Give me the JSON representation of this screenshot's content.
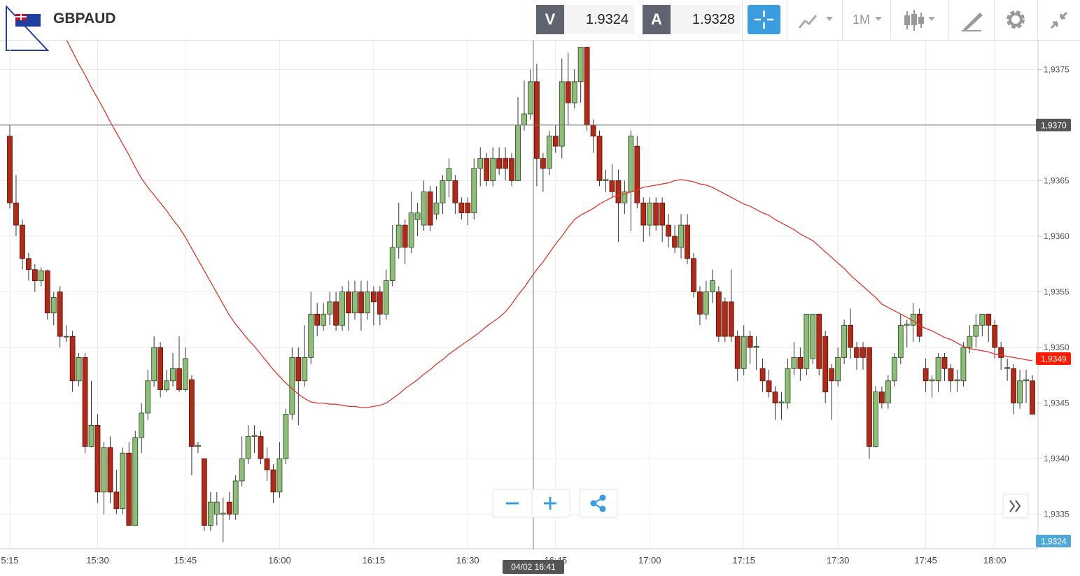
{
  "header": {
    "symbol": "GBPAUD",
    "bid_label": "V",
    "bid": 1.9324,
    "ask_label": "A",
    "ask": 1.9328,
    "timeframe": "1M"
  },
  "chart_data": {
    "type": "candlestick",
    "categories": [
      "5:15",
      null,
      null,
      null,
      null,
      null,
      null,
      null,
      null,
      null,
      null,
      null,
      null,
      null,
      "15:30",
      null,
      null,
      null,
      null,
      null,
      null,
      null,
      null,
      null,
      null,
      null,
      null,
      null,
      "15:45",
      null,
      null,
      null,
      null,
      null,
      null,
      null,
      null,
      null,
      null,
      null,
      null,
      null,
      null,
      "16:00",
      null,
      null,
      null,
      null,
      null,
      null,
      null,
      null,
      null,
      null,
      null,
      null,
      null,
      null,
      "16:15",
      null,
      null,
      null,
      null,
      null,
      null,
      null,
      null,
      null,
      null,
      null,
      null,
      null,
      null,
      "16:30",
      null,
      null,
      null,
      null,
      null,
      null,
      null,
      null,
      null,
      null,
      null,
      null,
      null,
      "16:45",
      null,
      null,
      null,
      null,
      null,
      null,
      null,
      null,
      null,
      null,
      null,
      null,
      null,
      null,
      "17:00",
      null,
      null,
      null,
      null,
      null,
      null,
      null,
      null,
      null,
      null,
      null,
      null,
      null,
      null,
      "17:15",
      null,
      null,
      null,
      null,
      null,
      null,
      null,
      null,
      null,
      null,
      null,
      null,
      null,
      null,
      "17:30",
      null,
      null,
      null,
      null,
      null,
      null,
      null,
      null,
      null,
      null,
      null,
      null,
      null,
      "17:45",
      null,
      null,
      null,
      null,
      null,
      null,
      null,
      null,
      null,
      null,
      "18:00",
      null,
      null,
      null,
      null,
      null,
      null
    ],
    "ohlc": [
      [
        1.9369,
        1.937,
        1.93625,
        1.9363
      ],
      [
        1.9363,
        1.93655,
        1.936,
        1.9361
      ],
      [
        1.9361,
        1.93615,
        1.9357,
        1.9358
      ],
      [
        1.9358,
        1.93585,
        1.9356,
        1.9357
      ],
      [
        1.9357,
        1.93575,
        1.9355,
        1.9356
      ],
      [
        1.9356,
        1.93572,
        1.93555,
        1.93569
      ],
      [
        1.93569,
        1.9357,
        1.93525,
        1.93531
      ],
      [
        1.93531,
        1.9355,
        1.9352,
        1.93545
      ],
      [
        1.9355,
        1.93555,
        1.935,
        1.9351
      ],
      [
        1.9351,
        1.9352,
        1.93505,
        1.9351
      ],
      [
        1.9351,
        1.93515,
        1.9346,
        1.9347
      ],
      [
        1.9347,
        1.93495,
        1.93465,
        1.93491
      ],
      [
        1.93491,
        1.93495,
        1.93405,
        1.93411
      ],
      [
        1.93411,
        1.9347,
        1.9341,
        1.9343
      ],
      [
        1.9343,
        1.9344,
        1.9336,
        1.9337
      ],
      [
        1.9337,
        1.93415,
        1.9335,
        1.9341
      ],
      [
        1.9341,
        1.9342,
        1.9336,
        1.9337
      ],
      [
        1.9337,
        1.9339,
        1.9335,
        1.93355
      ],
      [
        1.93355,
        1.9341,
        1.9335,
        1.93405
      ],
      [
        1.93405,
        1.93415,
        1.9334,
        1.9334
      ],
      [
        1.9334,
        1.93425,
        1.9334,
        1.93419
      ],
      [
        1.93419,
        1.9345,
        1.93405,
        1.93441
      ],
      [
        1.93441,
        1.9348,
        1.93435,
        1.9347
      ],
      [
        1.9347,
        1.9351,
        1.93465,
        1.935
      ],
      [
        1.935,
        1.93505,
        1.93455,
        1.93462
      ],
      [
        1.93462,
        1.9348,
        1.9346,
        1.9347
      ],
      [
        1.9347,
        1.93495,
        1.93465,
        1.93481
      ],
      [
        1.93481,
        1.9351,
        1.9346,
        1.93462
      ],
      [
        1.93462,
        1.935,
        1.9346,
        1.9349
      ],
      [
        1.93471,
        1.93475,
        1.93385,
        1.93411
      ],
      [
        1.93411,
        1.93415,
        1.93405,
        1.93412
      ],
      [
        1.934,
        1.934,
        1.93335,
        1.9334
      ],
      [
        1.9334,
        1.9337,
        1.93335,
        1.93361
      ],
      [
        1.9335,
        1.9337,
        1.9334,
        1.93361
      ],
      [
        1.9335,
        1.93365,
        1.93325,
        1.93351
      ],
      [
        1.93361,
        1.9337,
        1.93345,
        1.9335
      ],
      [
        1.9335,
        1.93385,
        1.93345,
        1.9338
      ],
      [
        1.9338,
        1.9342,
        1.93375,
        1.934
      ],
      [
        1.934,
        1.9343,
        1.93395,
        1.9342
      ],
      [
        1.9342,
        1.9343,
        1.93405,
        1.93421
      ],
      [
        1.9342,
        1.93425,
        1.93395,
        1.934
      ],
      [
        1.934,
        1.9341,
        1.9338,
        1.9339
      ],
      [
        1.9339,
        1.93395,
        1.9336,
        1.9337
      ],
      [
        1.9337,
        1.93415,
        1.93365,
        1.934
      ],
      [
        1.934,
        1.93445,
        1.93395,
        1.9344
      ],
      [
        1.9344,
        1.935,
        1.93435,
        1.93491
      ],
      [
        1.93491,
        1.935,
        1.9343,
        1.9347
      ],
      [
        1.9347,
        1.9352,
        1.93465,
        1.93491
      ],
      [
        1.93491,
        1.9355,
        1.93485,
        1.9353
      ],
      [
        1.9353,
        1.9354,
        1.9351,
        1.9352
      ],
      [
        1.9352,
        1.9354,
        1.93515,
        1.9353
      ],
      [
        1.9353,
        1.9355,
        1.9352,
        1.93541
      ],
      [
        1.93541,
        1.9355,
        1.93515,
        1.9352
      ],
      [
        1.9352,
        1.93555,
        1.93515,
        1.9355
      ],
      [
        1.9355,
        1.9356,
        1.93515,
        1.93531
      ],
      [
        1.93531,
        1.9356,
        1.93525,
        1.9355
      ],
      [
        1.9355,
        1.9356,
        1.93515,
        1.93531
      ],
      [
        1.93531,
        1.9356,
        1.93525,
        1.9355
      ],
      [
        1.9355,
        1.93555,
        1.9352,
        1.93541
      ],
      [
        1.9355,
        1.93555,
        1.9352,
        1.9353
      ],
      [
        1.9353,
        1.9357,
        1.93525,
        1.9356
      ],
      [
        1.9356,
        1.9361,
        1.93555,
        1.9359
      ],
      [
        1.9359,
        1.9363,
        1.9358,
        1.9361
      ],
      [
        1.9361,
        1.93615,
        1.93575,
        1.9359
      ],
      [
        1.9359,
        1.9364,
        1.93585,
        1.93621
      ],
      [
        1.93615,
        1.9363,
        1.936,
        1.93621
      ],
      [
        1.9361,
        1.9365,
        1.93605,
        1.9364
      ],
      [
        1.9364,
        1.93645,
        1.93605,
        1.9361
      ],
      [
        1.9362,
        1.93645,
        1.93615,
        1.9363
      ],
      [
        1.9363,
        1.93655,
        1.9362,
        1.9365
      ],
      [
        1.9365,
        1.9367,
        1.93635,
        1.93661
      ],
      [
        1.9365,
        1.93655,
        1.9362,
        1.9363
      ],
      [
        1.9363,
        1.93635,
        1.93615,
        1.93621
      ],
      [
        1.9363,
        1.93635,
        1.9361,
        1.93621
      ],
      [
        1.93621,
        1.9367,
        1.93615,
        1.93661
      ],
      [
        1.93661,
        1.9368,
        1.93645,
        1.9367
      ],
      [
        1.9367,
        1.93675,
        1.93645,
        1.9365
      ],
      [
        1.9365,
        1.9368,
        1.93645,
        1.9367
      ],
      [
        1.9367,
        1.9368,
        1.93655,
        1.93661
      ],
      [
        1.9367,
        1.9368,
        1.9365,
        1.93661
      ],
      [
        1.9367,
        1.93675,
        1.93645,
        1.9365
      ],
      [
        1.9365,
        1.93725,
        1.9365,
        1.937
      ],
      [
        1.937,
        1.9374,
        1.93695,
        1.9371
      ],
      [
        1.9371,
        1.9375,
        1.93705,
        1.93739
      ],
      [
        1.93739,
        1.93755,
        1.93645,
        1.9367
      ],
      [
        1.9367,
        1.93675,
        1.9364,
        1.93661
      ],
      [
        1.93661,
        1.93695,
        1.93655,
        1.9369
      ],
      [
        1.9369,
        1.937,
        1.93675,
        1.93681
      ],
      [
        1.93681,
        1.9376,
        1.9367,
        1.93739
      ],
      [
        1.93739,
        1.93765,
        1.937,
        1.9372
      ],
      [
        1.9372,
        1.9375,
        1.93715,
        1.93739
      ],
      [
        1.93739,
        1.9377,
        1.9372,
        1.9377
      ],
      [
        1.9377,
        1.9377,
        1.93695,
        1.937
      ],
      [
        1.937,
        1.93705,
        1.93675,
        1.9369
      ],
      [
        1.9369,
        1.93695,
        1.93645,
        1.9365
      ],
      [
        1.9365,
        1.9366,
        1.9364,
        1.93651
      ],
      [
        1.9365,
        1.93665,
        1.93635,
        1.9364
      ],
      [
        1.9365,
        1.9366,
        1.93595,
        1.9363
      ],
      [
        1.9363,
        1.9365,
        1.9362,
        1.9364
      ],
      [
        1.9364,
        1.93695,
        1.93605,
        1.9369
      ],
      [
        1.93681,
        1.9369,
        1.93625,
        1.9363
      ],
      [
        1.9363,
        1.93635,
        1.93595,
        1.9361
      ],
      [
        1.9361,
        1.93635,
        1.936,
        1.9363
      ],
      [
        1.9363,
        1.93635,
        1.93605,
        1.9361
      ],
      [
        1.9363,
        1.93635,
        1.93595,
        1.9361
      ],
      [
        1.9361,
        1.9362,
        1.9359,
        1.936
      ],
      [
        1.936,
        1.9361,
        1.93585,
        1.9359
      ],
      [
        1.9359,
        1.9362,
        1.9358,
        1.9361
      ],
      [
        1.9361,
        1.9362,
        1.93575,
        1.9358
      ],
      [
        1.9358,
        1.93585,
        1.93545,
        1.9355
      ],
      [
        1.9355,
        1.93555,
        1.9352,
        1.9353
      ],
      [
        1.9353,
        1.9356,
        1.93525,
        1.9355
      ],
      [
        1.9355,
        1.9357,
        1.9354,
        1.9356
      ],
      [
        1.9355,
        1.93555,
        1.93505,
        1.9351
      ],
      [
        1.93541,
        1.93545,
        1.93505,
        1.9351
      ],
      [
        1.93541,
        1.9357,
        1.93505,
        1.9351
      ],
      [
        1.9351,
        1.93515,
        1.9347,
        1.93481
      ],
      [
        1.93481,
        1.9352,
        1.93475,
        1.9351
      ],
      [
        1.9351,
        1.93515,
        1.93485,
        1.935
      ],
      [
        1.935,
        1.9351,
        1.9348,
        1.93501
      ],
      [
        1.93481,
        1.9349,
        1.9346,
        1.9347
      ],
      [
        1.9347,
        1.9348,
        1.93455,
        1.9346
      ],
      [
        1.9346,
        1.93465,
        1.93435,
        1.9345
      ],
      [
        1.9345,
        1.9346,
        1.93435,
        1.93451
      ],
      [
        1.9345,
        1.9349,
        1.93445,
        1.93481
      ],
      [
        1.93481,
        1.93505,
        1.93475,
        1.93491
      ],
      [
        1.93491,
        1.935,
        1.9347,
        1.93481
      ],
      [
        1.93481,
        1.9353,
        1.93475,
        1.9353
      ],
      [
        1.9349,
        1.9353,
        1.93485,
        1.9353
      ],
      [
        1.9353,
        1.9353,
        1.93475,
        1.93481
      ],
      [
        1.9351,
        1.93515,
        1.9345,
        1.9346
      ],
      [
        1.93481,
        1.93485,
        1.93435,
        1.9347
      ],
      [
        1.9347,
        1.935,
        1.93465,
        1.93491
      ],
      [
        1.93491,
        1.93525,
        1.93485,
        1.9352
      ],
      [
        1.9352,
        1.93535,
        1.9349,
        1.935
      ],
      [
        1.935,
        1.93505,
        1.9348,
        1.93491
      ],
      [
        1.935,
        1.93505,
        1.9348,
        1.93491
      ],
      [
        1.935,
        1.935,
        1.934,
        1.93411
      ],
      [
        1.93411,
        1.93465,
        1.9341,
        1.9346
      ],
      [
        1.9346,
        1.93465,
        1.93445,
        1.9345
      ],
      [
        1.9345,
        1.93475,
        1.93445,
        1.9347
      ],
      [
        1.9347,
        1.93495,
        1.93465,
        1.93491
      ],
      [
        1.93491,
        1.9353,
        1.93485,
        1.9352
      ],
      [
        1.9352,
        1.93525,
        1.935,
        1.93521
      ],
      [
        1.9352,
        1.9354,
        1.93505,
        1.9353
      ],
      [
        1.9353,
        1.93535,
        1.93505,
        1.9351
      ],
      [
        1.93481,
        1.9349,
        1.9346,
        1.9347
      ],
      [
        1.9347,
        1.93475,
        1.93455,
        1.93471
      ],
      [
        1.9347,
        1.93495,
        1.9346,
        1.93491
      ],
      [
        1.93491,
        1.93495,
        1.9347,
        1.93481
      ],
      [
        1.93481,
        1.93485,
        1.9346,
        1.9347
      ],
      [
        1.9347,
        1.9348,
        1.9346,
        1.93471
      ],
      [
        1.9347,
        1.93505,
        1.93465,
        1.935
      ],
      [
        1.935,
        1.9352,
        1.93495,
        1.9351
      ],
      [
        1.9351,
        1.9353,
        1.935,
        1.9352
      ],
      [
        1.9352,
        1.9353,
        1.9351,
        1.9353
      ],
      [
        1.9353,
        1.9353,
        1.93505,
        1.9352
      ],
      [
        1.9352,
        1.93525,
        1.9349,
        1.935
      ],
      [
        1.935,
        1.93505,
        1.9348,
        1.93491
      ],
      [
        1.93481,
        1.9349,
        1.9347,
        1.93482
      ],
      [
        1.93481,
        1.93485,
        1.9344,
        1.9345
      ],
      [
        1.9345,
        1.9348,
        1.93445,
        1.9347
      ],
      [
        1.9347,
        1.9348,
        1.9345,
        1.93471
      ],
      [
        1.9347,
        1.93475,
        1.9344,
        1.9344
      ]
    ],
    "up_color": "#8cbf76",
    "down_color": "#b12a17",
    "ma": {
      "color": "#e0362c",
      "values": [
        null,
        null,
        null,
        null,
        null,
        null,
        null,
        null,
        null,
        1.93777,
        1.93766,
        1.93755,
        1.93745,
        1.93734,
        1.93724,
        1.93714,
        1.93703,
        1.93693,
        1.93683,
        1.93673,
        1.93662,
        1.93652,
        1.93644,
        1.93637,
        1.9363,
        1.93623,
        1.93615,
        1.93608,
        1.93599,
        1.93589,
        1.93579,
        1.93569,
        1.93559,
        1.93549,
        1.93539,
        1.93529,
        1.93521,
        1.93514,
        1.93507,
        1.93501,
        1.93494,
        1.93487,
        1.9348,
        1.93474,
        1.93468,
        1.93463,
        1.93458,
        1.93454,
        1.93451,
        1.9345,
        1.9345,
        1.93449,
        1.93449,
        1.93448,
        1.93447,
        1.93447,
        1.93446,
        1.93446,
        1.93447,
        1.93448,
        1.9345,
        1.93454,
        1.93458,
        1.93463,
        1.93467,
        1.93471,
        1.93476,
        1.9348,
        1.93485,
        1.93489,
        1.93494,
        1.93498,
        1.93502,
        1.93506,
        1.9351,
        1.93514,
        1.93519,
        1.93523,
        1.93527,
        1.93532,
        1.93539,
        1.93547,
        1.93554,
        1.93562,
        1.9357,
        1.93577,
        1.93585,
        1.93593,
        1.936,
        1.93608,
        1.93615,
        1.93619,
        1.93622,
        1.93625,
        1.93629,
        1.93632,
        1.93635,
        1.93637,
        1.93638,
        1.9364,
        1.93642,
        1.93644,
        1.93645,
        1.93646,
        1.93647,
        1.93648,
        1.9365,
        1.93651,
        1.9365,
        1.93649,
        1.93647,
        1.93646,
        1.93644,
        1.93641,
        1.93638,
        1.93635,
        1.93632,
        1.93629,
        1.93627,
        1.93624,
        1.93621,
        1.93619,
        1.93615,
        1.93612,
        1.93609,
        1.93606,
        1.93602,
        1.93599,
        1.93596,
        1.93591,
        1.93586,
        1.93581,
        1.93576,
        1.93571,
        1.93565,
        1.9356,
        1.93555,
        1.9355,
        1.93545,
        1.93539,
        1.93536,
        1.93533,
        1.9353,
        1.93527,
        1.93524,
        1.9352,
        1.93517,
        1.93515,
        1.93512,
        1.93509,
        1.93507,
        1.93504,
        1.93501,
        1.93499,
        1.93498,
        1.93497,
        1.93496,
        1.93494,
        1.93493,
        1.93492,
        1.93491,
        1.9349,
        1.93489,
        1.93488
      ]
    },
    "ylim": [
      1.93319,
      1.93776
    ],
    "yticks": [
      {
        "value": 1.9335,
        "label": "1,9335"
      },
      {
        "value": 1.934,
        "label": "1,9340"
      },
      {
        "value": 1.9345,
        "label": "1,9345"
      },
      {
        "value": 1.935,
        "label": "1,9350"
      },
      {
        "value": 1.9355,
        "label": "1,9355"
      },
      {
        "value": 1.936,
        "label": "1,9360"
      },
      {
        "value": 1.9365,
        "label": "1,9365"
      },
      {
        "value": 1.937,
        "label": "1,9370"
      },
      {
        "value": 1.9375,
        "label": "1,9375"
      }
    ],
    "grid": true,
    "crosshair": {
      "value": 1.937,
      "label": "1,9370",
      "time": "04/02 16:41"
    },
    "price_tags": [
      {
        "value": 1.9349,
        "label": "1,9349",
        "color": "#ff1a00"
      },
      {
        "value": 1.9324,
        "label": "1,9324",
        "color": "#4fa8d8"
      }
    ]
  }
}
